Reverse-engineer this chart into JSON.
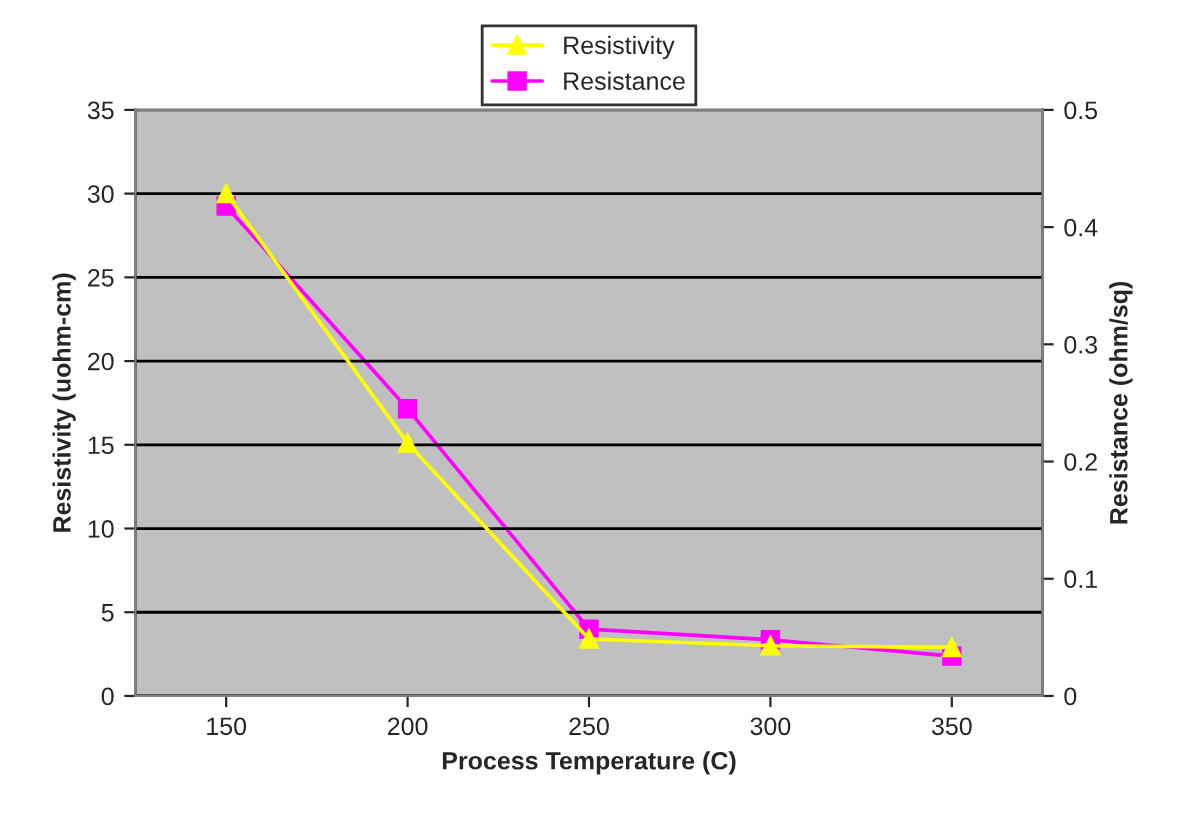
{
  "chart_data": {
    "type": "line",
    "xlabel": "Process Temperature (C)",
    "ylabel": "Resistivity (uohm-cm)",
    "y2label": "Resistance (ohm/sq)",
    "categories": [
      "150",
      "200",
      "250",
      "300",
      "350"
    ],
    "series": [
      {
        "name": "Resistivity",
        "color": "#ffff00",
        "marker": "triangle",
        "values": [
          30.0,
          15.1,
          3.4,
          3.0,
          2.9
        ]
      },
      {
        "name": "Resistance",
        "color": "#ff00ff",
        "marker": "square",
        "axis": "y2",
        "values": [
          0.418,
          0.245,
          0.057,
          0.048,
          0.034
        ]
      }
    ],
    "ylim": [
      0,
      35
    ],
    "yticks": [
      0,
      5,
      10,
      15,
      20,
      25,
      30,
      35
    ],
    "y2lim": [
      0,
      0.5
    ],
    "y2ticks": [
      0,
      0.1,
      0.2,
      0.3,
      0.4,
      0.5
    ],
    "grid": "y",
    "legend": "top",
    "line_style": "solid"
  }
}
